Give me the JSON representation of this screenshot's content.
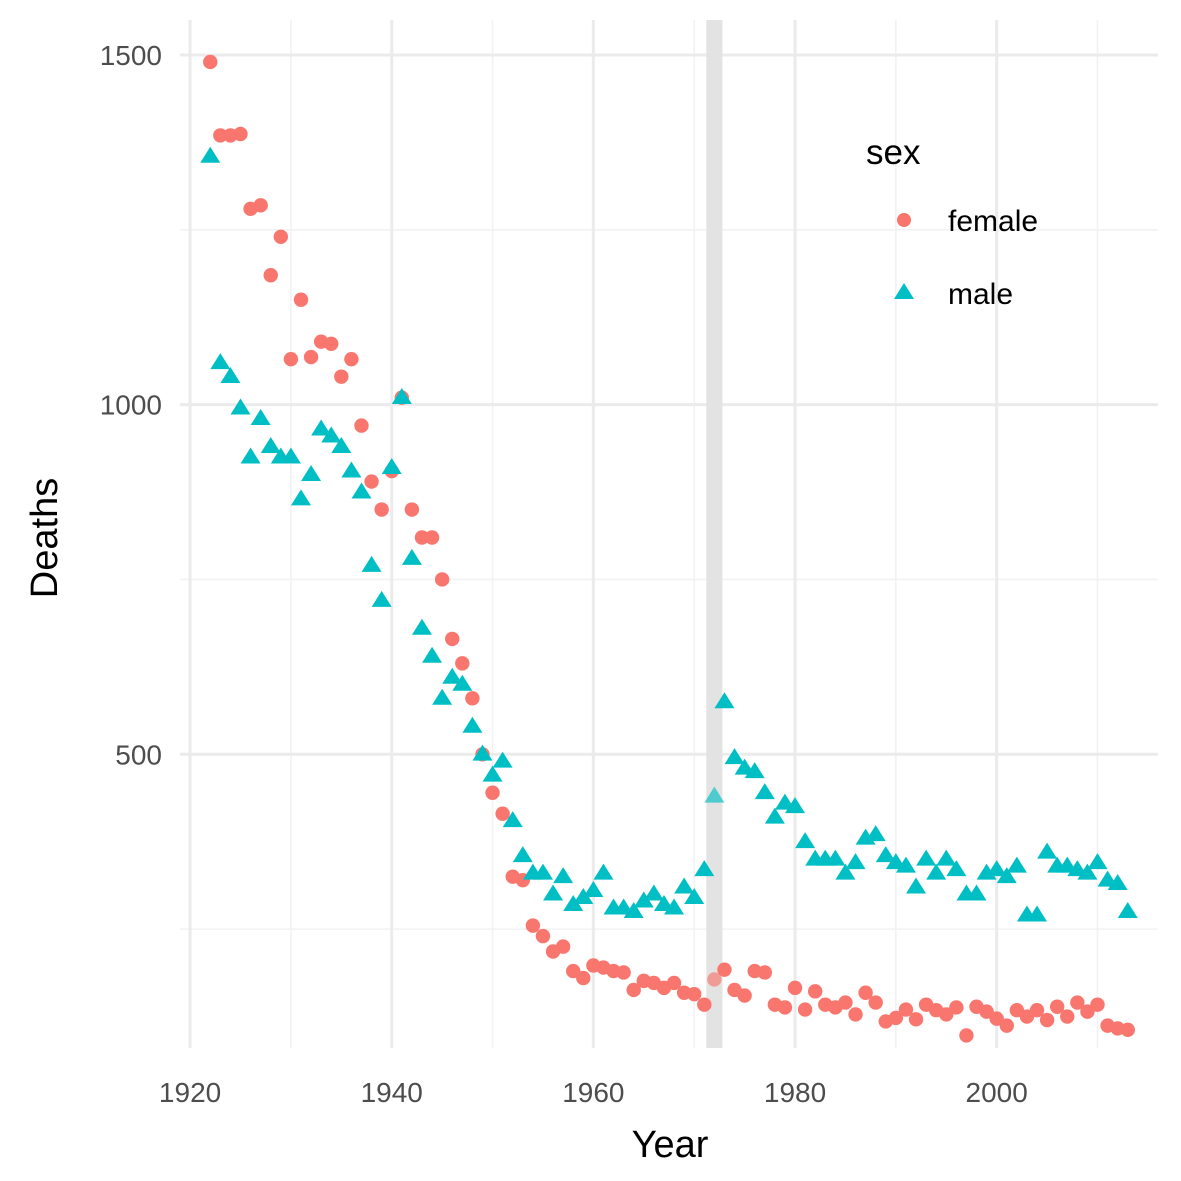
{
  "chart_data": {
    "type": "scatter",
    "xlabel": "Year",
    "ylabel": "Deaths",
    "xlim": [
      1919,
      2016
    ],
    "ylim": [
      80,
      1550
    ],
    "x_ticks": [
      1920,
      1940,
      1960,
      1980,
      2000
    ],
    "y_ticks": [
      500,
      1000,
      1500
    ],
    "y_minor_ticks": [
      250,
      750,
      1250
    ],
    "x_minor_ticks": [
      1930,
      1950,
      1970,
      1990,
      2010
    ],
    "grid": true,
    "highlight_band": {
      "x_from": 1971.2,
      "x_to": 1972.8,
      "color": "#e3e3e3"
    },
    "legend": {
      "title": "sex",
      "position": "top-right",
      "entries": [
        {
          "label": "female",
          "shape": "circle",
          "color": "#F8766D"
        },
        {
          "label": "male",
          "shape": "triangle",
          "color": "#00BFC4"
        }
      ]
    },
    "series": [
      {
        "name": "female",
        "shape": "circle",
        "color": "#F8766D",
        "x": [
          1922,
          1923,
          1924,
          1925,
          1926,
          1927,
          1928,
          1929,
          1930,
          1931,
          1932,
          1933,
          1934,
          1935,
          1936,
          1937,
          1938,
          1939,
          1940,
          1941,
          1942,
          1943,
          1944,
          1945,
          1946,
          1947,
          1948,
          1949,
          1950,
          1951,
          1952,
          1953,
          1954,
          1955,
          1956,
          1957,
          1958,
          1959,
          1960,
          1961,
          1962,
          1963,
          1964,
          1965,
          1966,
          1967,
          1968,
          1969,
          1970,
          1971,
          1972,
          1973,
          1974,
          1975,
          1976,
          1977,
          1978,
          1979,
          1980,
          1981,
          1982,
          1983,
          1984,
          1985,
          1986,
          1987,
          1988,
          1989,
          1990,
          1991,
          1992,
          1993,
          1994,
          1995,
          1996,
          1997,
          1998,
          1999,
          2000,
          2001,
          2002,
          2003,
          2004,
          2005,
          2006,
          2007,
          2008,
          2009,
          2010,
          2011,
          2012,
          2013
        ],
        "y": [
          1490,
          1385,
          1385,
          1387,
          1280,
          1285,
          1185,
          1240,
          1065,
          1150,
          1068,
          1090,
          1087,
          1040,
          1065,
          970,
          890,
          850,
          905,
          1010,
          850,
          810,
          810,
          750,
          665,
          630,
          580,
          500,
          445,
          415,
          325,
          320,
          255,
          240,
          218,
          225,
          190,
          180,
          198,
          195,
          190,
          188,
          163,
          176,
          173,
          166,
          173,
          159,
          157,
          142,
          178,
          192,
          163,
          155,
          190,
          188,
          142,
          138,
          166,
          135,
          161,
          142,
          138,
          145,
          128,
          159,
          145,
          118,
          123,
          135,
          121,
          142,
          134,
          128,
          138,
          98,
          139,
          132,
          122,
          112,
          134,
          125,
          134,
          120,
          139,
          125,
          145,
          132,
          142,
          112,
          108,
          106
        ]
      },
      {
        "name": "male",
        "shape": "triangle",
        "color": "#00BFC4",
        "x": [
          1922,
          1923,
          1924,
          1925,
          1926,
          1927,
          1928,
          1929,
          1930,
          1931,
          1932,
          1933,
          1934,
          1935,
          1936,
          1937,
          1938,
          1939,
          1940,
          1941,
          1942,
          1943,
          1944,
          1945,
          1946,
          1947,
          1948,
          1949,
          1950,
          1951,
          1952,
          1953,
          1954,
          1955,
          1956,
          1957,
          1958,
          1959,
          1960,
          1961,
          1962,
          1963,
          1964,
          1965,
          1966,
          1967,
          1968,
          1969,
          1970,
          1971,
          1972,
          1973,
          1974,
          1975,
          1976,
          1977,
          1978,
          1979,
          1980,
          1981,
          1982,
          1983,
          1984,
          1985,
          1986,
          1987,
          1988,
          1989,
          1990,
          1991,
          1992,
          1993,
          1994,
          1995,
          1996,
          1997,
          1998,
          1999,
          2000,
          2001,
          2002,
          2003,
          2004,
          2005,
          2006,
          2007,
          2008,
          2009,
          2010,
          2011,
          2012,
          2013
        ],
        "y": [
          1355,
          1060,
          1040,
          995,
          925,
          980,
          940,
          925,
          925,
          865,
          900,
          965,
          955,
          940,
          905,
          875,
          770,
          720,
          910,
          1010,
          780,
          680,
          640,
          580,
          610,
          600,
          540,
          500,
          470,
          490,
          405,
          355,
          330,
          330,
          300,
          325,
          285,
          295,
          305,
          330,
          280,
          280,
          275,
          290,
          300,
          285,
          280,
          310,
          295,
          335,
          440,
          575,
          495,
          480,
          475,
          445,
          410,
          430,
          425,
          375,
          350,
          350,
          350,
          330,
          345,
          380,
          385,
          355,
          345,
          340,
          310,
          350,
          330,
          350,
          335,
          300,
          300,
          330,
          335,
          325,
          340,
          270,
          270,
          360,
          340,
          340,
          335,
          330,
          345,
          320,
          315,
          275
        ]
      }
    ]
  }
}
